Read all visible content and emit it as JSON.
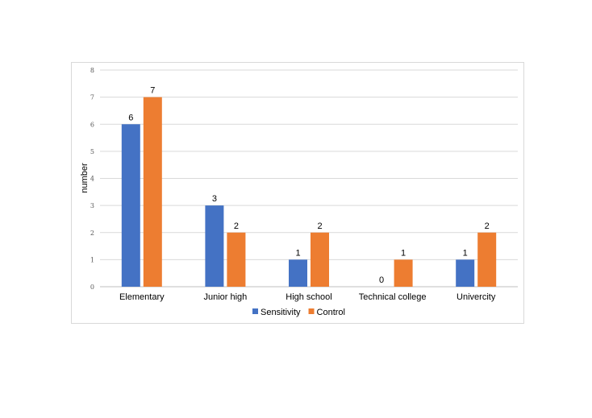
{
  "chart_data": {
    "type": "bar",
    "title": "",
    "xlabel": "",
    "ylabel": "number",
    "ylim": [
      0,
      8
    ],
    "yticks": [
      0,
      1,
      2,
      3,
      4,
      5,
      6,
      7,
      8
    ],
    "grid": true,
    "legend_position": "bottom",
    "categories": [
      "Elementary",
      "Junior high",
      "High school",
      "Technical college",
      "Univercity"
    ],
    "series": [
      {
        "name": "Sensitivity",
        "color": "#4472c4",
        "values": [
          6,
          3,
          1,
          0,
          1
        ]
      },
      {
        "name": "Control",
        "color": "#ed7d31",
        "values": [
          7,
          2,
          2,
          1,
          2
        ]
      }
    ]
  }
}
